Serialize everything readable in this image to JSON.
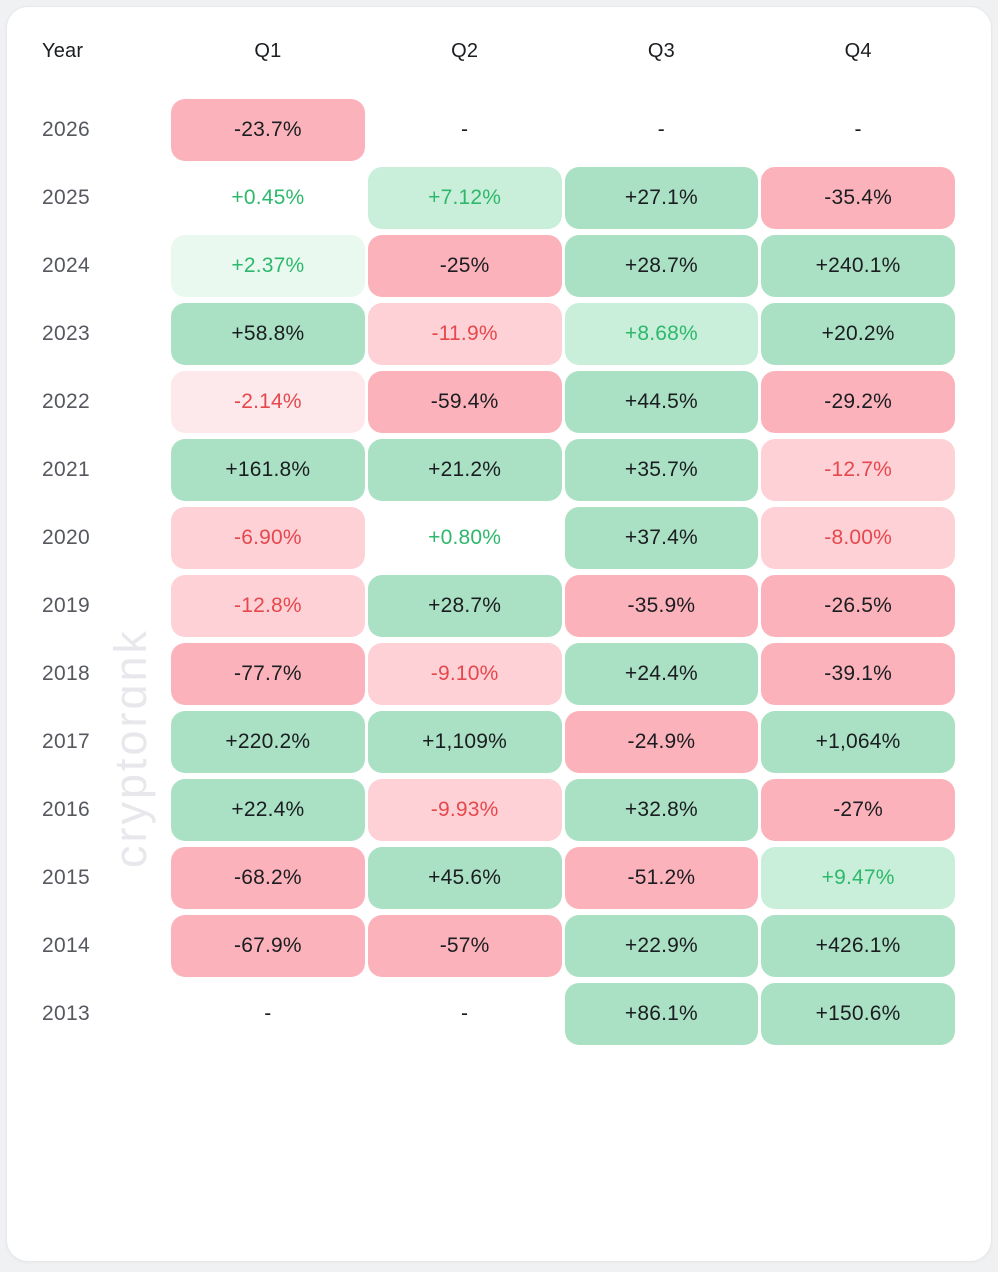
{
  "watermark": "cryptorɑnk",
  "palette": {
    "pos_strong_bg": "#aae0c3",
    "pos_mid_bg": "#c9efda",
    "pos_light_bg": "#e9f9f0",
    "neg_strong_bg": "#fcb2ba",
    "neg_mid_bg": "#fdd1d6",
    "neg_light_bg": "#fde8eb",
    "pos_text": "#2db86b",
    "neg_text": "#e5484d",
    "dark_text": "#1a1d21",
    "year_text": "#55585e",
    "watermark_color": "#e8e8ec"
  },
  "table": {
    "headers": [
      "Year",
      "Q1",
      "Q2",
      "Q3",
      "Q4"
    ],
    "empty_marker": "-",
    "rows": [
      {
        "year": "2026",
        "values": [
          "-23.7%",
          "-",
          "-",
          "-"
        ]
      },
      {
        "year": "2025",
        "values": [
          "+0.45%",
          "+7.12%",
          "+27.1%",
          "-35.4%"
        ]
      },
      {
        "year": "2024",
        "values": [
          "+2.37%",
          "-25%",
          "+28.7%",
          "+240.1%"
        ]
      },
      {
        "year": "2023",
        "values": [
          "+58.8%",
          "-11.9%",
          "+8.68%",
          "+20.2%"
        ]
      },
      {
        "year": "2022",
        "values": [
          "-2.14%",
          "-59.4%",
          "+44.5%",
          "-29.2%"
        ]
      },
      {
        "year": "2021",
        "values": [
          "+161.8%",
          "+21.2%",
          "+35.7%",
          "-12.7%"
        ]
      },
      {
        "year": "2020",
        "values": [
          "-6.90%",
          "+0.80%",
          "+37.4%",
          "-8.00%"
        ]
      },
      {
        "year": "2019",
        "values": [
          "-12.8%",
          "+28.7%",
          "-35.9%",
          "-26.5%"
        ]
      },
      {
        "year": "2018",
        "values": [
          "-77.7%",
          "-9.10%",
          "+24.4%",
          "-39.1%"
        ]
      },
      {
        "year": "2017",
        "values": [
          "+220.2%",
          "+1,109%",
          "-24.9%",
          "+1,064%"
        ]
      },
      {
        "year": "2016",
        "values": [
          "+22.4%",
          "-9.93%",
          "+32.8%",
          "-27%"
        ]
      },
      {
        "year": "2015",
        "values": [
          "-68.2%",
          "+45.6%",
          "-51.2%",
          "+9.47%"
        ]
      },
      {
        "year": "2014",
        "values": [
          "-67.9%",
          "-57%",
          "+22.9%",
          "+426.1%"
        ]
      },
      {
        "year": "2013",
        "values": [
          "-",
          "-",
          "+86.1%",
          "+150.6%"
        ]
      }
    ]
  },
  "chart_data": {
    "type": "heatmap",
    "title": "",
    "xlabel": "",
    "ylabel": "Year",
    "unit": "%",
    "columns": [
      "Q1",
      "Q2",
      "Q3",
      "Q4"
    ],
    "rows": [
      "2026",
      "2025",
      "2024",
      "2023",
      "2022",
      "2021",
      "2020",
      "2019",
      "2018",
      "2017",
      "2016",
      "2015",
      "2014",
      "2013"
    ],
    "values": [
      [
        -23.7,
        null,
        null,
        null
      ],
      [
        0.45,
        7.12,
        27.1,
        -35.4
      ],
      [
        2.37,
        -25,
        28.7,
        240.1
      ],
      [
        58.8,
        -11.9,
        8.68,
        20.2
      ],
      [
        -2.14,
        -59.4,
        44.5,
        -29.2
      ],
      [
        161.8,
        21.2,
        35.7,
        -12.7
      ],
      [
        -6.9,
        0.8,
        37.4,
        -8.0
      ],
      [
        -12.8,
        28.7,
        -35.9,
        -26.5
      ],
      [
        -77.7,
        -9.1,
        24.4,
        -39.1
      ],
      [
        220.2,
        1109,
        -24.9,
        1064
      ],
      [
        22.4,
        -9.93,
        32.8,
        -27
      ],
      [
        -68.2,
        45.6,
        -51.2,
        9.47
      ],
      [
        -67.9,
        -57,
        22.9,
        426.1
      ],
      [
        null,
        null,
        86.1,
        150.6
      ]
    ],
    "positive_color": "#aae0c3",
    "negative_color": "#fcb2ba",
    "legend_position": "none",
    "grid": false
  }
}
